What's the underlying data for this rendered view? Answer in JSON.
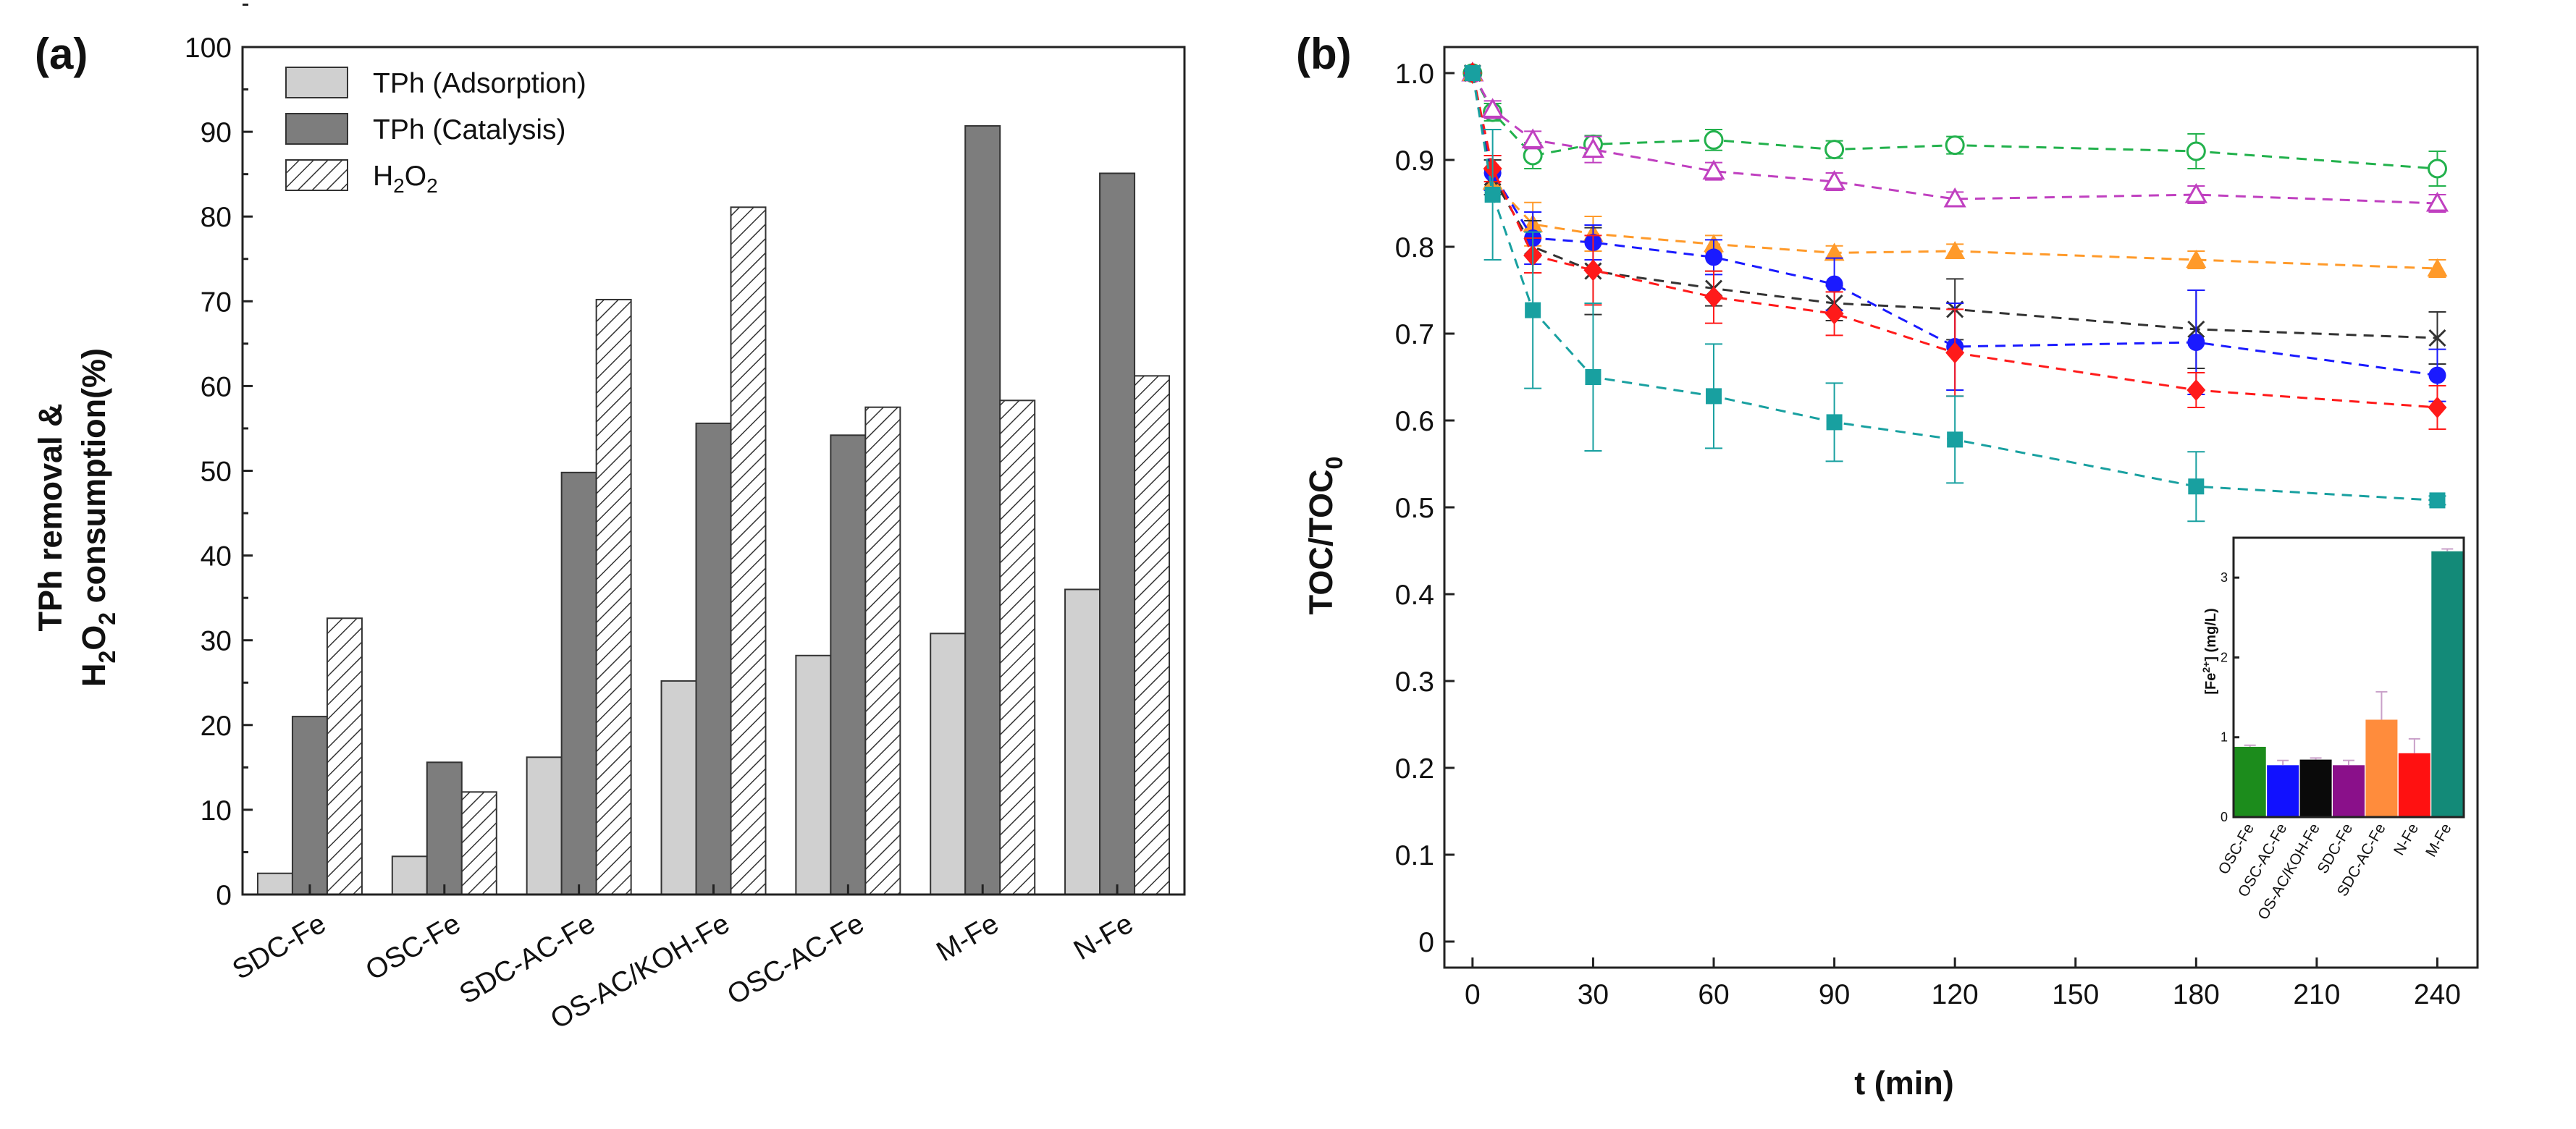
{
  "chart_data": [
    {
      "panel": "(a)",
      "type": "bar",
      "categories": [
        "SDC-Fe",
        "OSC-Fe",
        "SDC-AC-Fe",
        "OS-AC/KOH-Fe",
        "OSC-AC-Fe",
        "M-Fe",
        "N-Fe"
      ],
      "series": [
        {
          "name": "TPh (Adsorption)",
          "values": [
            2.5,
            4.5,
            16.2,
            25.2,
            28.2,
            30.8,
            36.0
          ],
          "fill": "#d0d0d0"
        },
        {
          "name": "TPh (Catalysis)",
          "values": [
            21.0,
            15.6,
            49.8,
            55.6,
            54.2,
            90.7,
            85.1
          ],
          "fill": "#7d7d7d"
        },
        {
          "name": "H2O2",
          "values": [
            32.6,
            12.1,
            70.2,
            81.1,
            57.5,
            58.3,
            61.2
          ],
          "fill": "hatch"
        }
      ],
      "ylabel_line1": "TPh removal &",
      "ylabel_line2_pre": "H",
      "ylabel_line2_sub1": "2",
      "ylabel_line2_mid": "O",
      "ylabel_line2_sub2": "2",
      "ylabel_line2_post": " consumption(%)",
      "ylim": [
        0,
        100
      ],
      "yticks": [
        0,
        10,
        20,
        30,
        40,
        50,
        60,
        70,
        80,
        90,
        100
      ],
      "legend_position": "top-left",
      "legend_h2o2_base": "H",
      "legend_h2o2_sub1": "2",
      "legend_h2o2_mid": "O",
      "legend_h2o2_sub2": "2"
    },
    {
      "panel": "(b)",
      "type": "line",
      "x": [
        0,
        5,
        15,
        30,
        60,
        90,
        120,
        180,
        240
      ],
      "xlabel": "t (min)",
      "ylabel_base": "TOC/TOC",
      "ylabel_sub": "0",
      "xlim": [
        -7,
        250
      ],
      "ylim": [
        -0.03,
        1.03
      ],
      "xticks": [
        0,
        30,
        60,
        90,
        120,
        150,
        180,
        210,
        240
      ],
      "yticks": [
        0,
        0.1,
        0.2,
        0.3,
        0.4,
        0.5,
        0.6,
        0.7,
        0.8,
        0.9,
        1.0
      ],
      "series": [
        {
          "name": "green-open-circle",
          "color": "#22b14c",
          "marker": "open-circle",
          "values": [
            1.0,
            0.955,
            0.905,
            0.918,
            0.923,
            0.912,
            0.917,
            0.91,
            0.89
          ],
          "errors": [
            0,
            0.01,
            0.015,
            0.01,
            0.012,
            0.01,
            0.01,
            0.02,
            0.02
          ]
        },
        {
          "name": "magenta-open-triangle",
          "color": "#c040c0",
          "marker": "open-triangle",
          "values": [
            1.0,
            0.958,
            0.923,
            0.912,
            0.887,
            0.875,
            0.855,
            0.86,
            0.85
          ],
          "errors": [
            0,
            0.01,
            0.01,
            0.015,
            0.01,
            0.01,
            0.008,
            0.01,
            0.01
          ]
        },
        {
          "name": "orange-triangle",
          "color": "#ff9a2a",
          "marker": "filled-triangle",
          "values": [
            1.0,
            0.875,
            0.826,
            0.815,
            0.803,
            0.793,
            0.795,
            0.785,
            0.775
          ],
          "errors": [
            0,
            0.01,
            0.025,
            0.02,
            0.01,
            0.008,
            0.008,
            0.01,
            0.01
          ]
        },
        {
          "name": "black-x",
          "color": "#333333",
          "marker": "x",
          "values": [
            1.0,
            0.88,
            0.8,
            0.772,
            0.752,
            0.735,
            0.728,
            0.705,
            0.695
          ],
          "errors": [
            0,
            0.02,
            0.03,
            0.05,
            0.02,
            0.02,
            0.035,
            0.045,
            0.03
          ]
        },
        {
          "name": "blue-circle",
          "color": "#1a1aff",
          "marker": "filled-circle",
          "values": [
            1.0,
            0.885,
            0.81,
            0.805,
            0.788,
            0.757,
            0.685,
            0.69,
            0.652
          ],
          "errors": [
            0,
            0.02,
            0.03,
            0.02,
            0.02,
            0.03,
            0.05,
            0.06,
            0.03
          ]
        },
        {
          "name": "red-diamond",
          "color": "#ff1a1a",
          "marker": "filled-diamond",
          "values": [
            1.0,
            0.89,
            0.79,
            0.773,
            0.742,
            0.723,
            0.678,
            0.635,
            0.615
          ],
          "errors": [
            0,
            0.015,
            0.02,
            0.04,
            0.03,
            0.025,
            0.05,
            0.02,
            0.025
          ]
        },
        {
          "name": "teal-square",
          "color": "#18a0a0",
          "marker": "filled-square",
          "values": [
            1.0,
            0.86,
            0.727,
            0.65,
            0.628,
            0.598,
            0.578,
            0.524,
            0.508
          ],
          "errors": [
            0,
            0.075,
            0.09,
            0.085,
            0.06,
            0.045,
            0.05,
            0.04,
            0.005
          ]
        }
      ]
    },
    {
      "panel": "(b) inset",
      "type": "bar",
      "categories": [
        "OSC-Fe",
        "OSC-AC-Fe",
        "OS-AC/KOH-Fe",
        "SDC-Fe",
        "SDC-AC-Fe",
        "N-Fe",
        "M-Fe"
      ],
      "values": [
        0.88,
        0.65,
        0.72,
        0.65,
        1.22,
        0.8,
        3.33
      ],
      "errors": [
        0.02,
        0.06,
        0.02,
        0.06,
        0.35,
        0.18,
        0.03
      ],
      "colors": [
        "#1c8c1c",
        "#1111ff",
        "#0a0a0a",
        "#8a108a",
        "#ff8c3c",
        "#ff1111",
        "#138a78"
      ],
      "ylabel_pre": "[Fe",
      "ylabel_sup": "2+",
      "ylabel_post": "] (mg/L)",
      "ylim": [
        0,
        3.5
      ],
      "yticks": [
        0,
        1,
        2,
        3
      ]
    }
  ]
}
